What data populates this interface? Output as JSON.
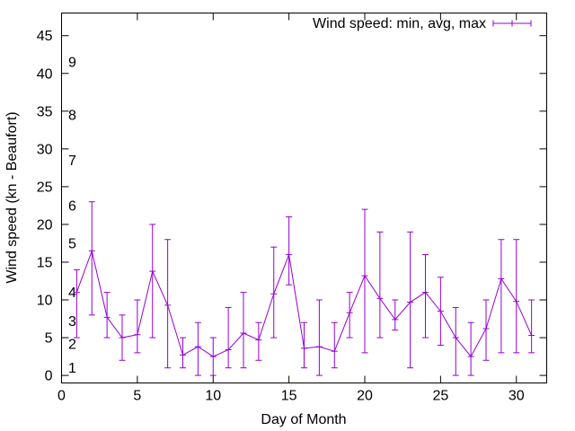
{
  "chart_data": {
    "type": "line",
    "xlabel": "Day of Month",
    "ylabel": "Wind speed (kn - Beaufort)",
    "xlim": [
      0,
      32
    ],
    "ylim": [
      -1,
      48
    ],
    "x_ticks": [
      0,
      5,
      10,
      15,
      20,
      25,
      30
    ],
    "y_ticks": [
      0,
      5,
      10,
      15,
      20,
      25,
      30,
      35,
      40,
      45
    ],
    "grid": false,
    "legend_position": "top-right",
    "series_color": "#9400d3",
    "beaufort_labels": [
      {
        "label": "1",
        "y": 1
      },
      {
        "label": "2",
        "y": 4.2
      },
      {
        "label": "3",
        "y": 7.2
      },
      {
        "label": "4",
        "y": 11
      },
      {
        "label": "5",
        "y": 17.5
      },
      {
        "label": "6",
        "y": 22.5
      },
      {
        "label": "7",
        "y": 28.5
      },
      {
        "label": "8",
        "y": 34.5
      },
      {
        "label": "9",
        "y": 41.5
      }
    ],
    "series": [
      {
        "name": "Wind speed: min, avg, max",
        "x": [
          1,
          2,
          3,
          4,
          5,
          6,
          7,
          8,
          9,
          10,
          11,
          12,
          13,
          14,
          15,
          16,
          17,
          18,
          19,
          20,
          21,
          22,
          23,
          24,
          25,
          26,
          27,
          28,
          29,
          30,
          31
        ],
        "avg": [
          11,
          16.5,
          7.7,
          5,
          5.4,
          13.8,
          9.3,
          2.7,
          3.8,
          2.5,
          3.4,
          5.6,
          4.7,
          10.8,
          16,
          3.6,
          3.8,
          3.2,
          8.3,
          13.2,
          10.2,
          7.4,
          9.7,
          11,
          8.5,
          5,
          2.5,
          6.2,
          12.8,
          9.8,
          5.3
        ],
        "min": [
          5,
          8,
          5,
          2,
          3,
          5,
          1,
          1,
          0,
          0,
          1,
          1,
          2,
          5,
          12,
          1,
          0,
          1,
          5,
          3,
          5,
          6,
          1,
          5,
          4,
          0,
          0,
          2,
          3,
          3,
          3
        ],
        "max": [
          14,
          23,
          11,
          8,
          10,
          20,
          18,
          5,
          7,
          5,
          9,
          11,
          7,
          17,
          21,
          7,
          10,
          7,
          11,
          22,
          19,
          10,
          19,
          16,
          13,
          9,
          7,
          10,
          18,
          18,
          10
        ]
      }
    ]
  }
}
